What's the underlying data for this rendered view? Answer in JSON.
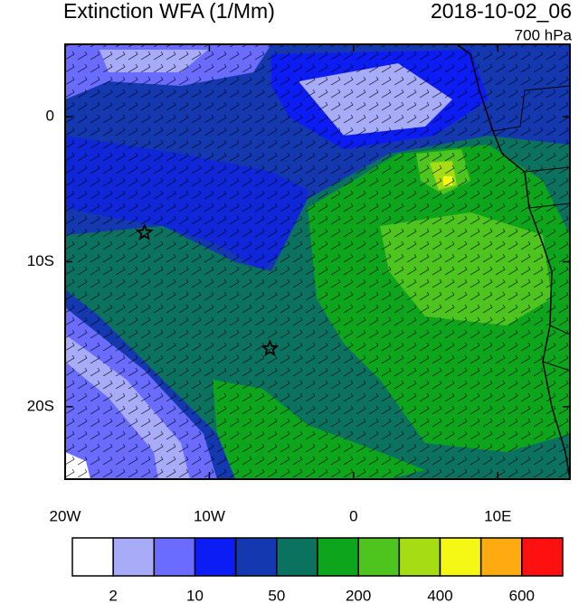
{
  "title": "Extinction WFA (1/Mm)",
  "date": "2018-10-02_06",
  "level": "700 hPa",
  "map": {
    "lon_range": [
      -20,
      15
    ],
    "lat_range": [
      -25,
      5
    ],
    "lon_ticks": [
      {
        "value": -20,
        "label": "20W"
      },
      {
        "value": -10,
        "label": "10W"
      },
      0,
      {
        "value": 10,
        "label": "10E"
      }
    ],
    "lat_ticks": [
      0,
      {
        "value": -10,
        "label": "10S"
      },
      {
        "value": -20,
        "label": "20S"
      }
    ],
    "markers": [
      {
        "lon": -14.5,
        "lat": -8
      },
      {
        "lon": -5.8,
        "lat": -16
      }
    ]
  },
  "colorbar": {
    "colors": [
      "#ffffff",
      "#a8acf8",
      "#6a6cff",
      "#0c1cf4",
      "#1438b0",
      "#0b7260",
      "#0ca51c",
      "#4ec41e",
      "#a6dc14",
      "#f4f814",
      "#ffaa10",
      "#ff5808",
      "#ff1010"
    ],
    "labels": [
      "2",
      "10",
      "50",
      "200",
      "400",
      "600"
    ]
  }
}
